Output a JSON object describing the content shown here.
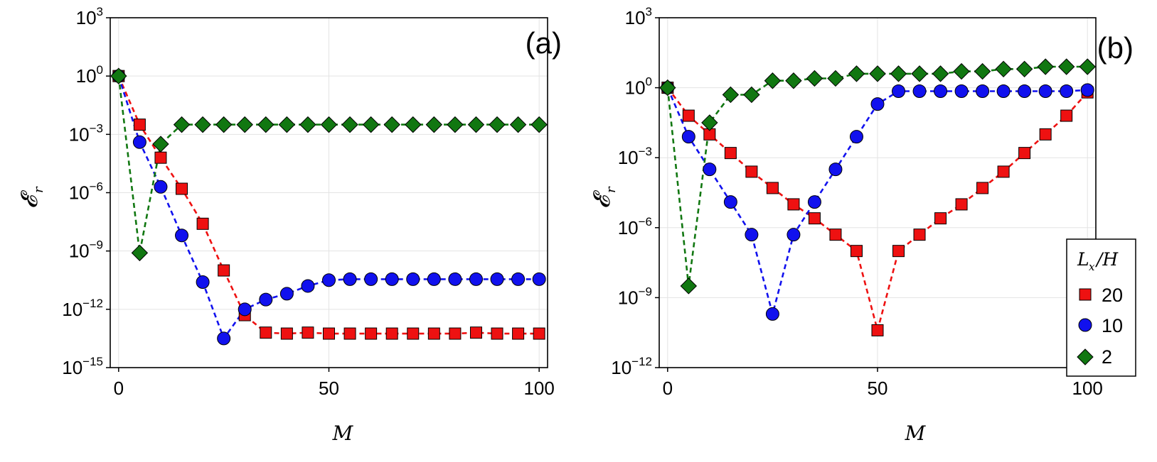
{
  "chart_data": [
    {
      "type": "line",
      "panel_label": "(a)",
      "xlabel": "M",
      "ylabel": "𝓔",
      "ylabel_subscript": "r",
      "yscale": "log",
      "xlim": [
        -2,
        102
      ],
      "ylim_exponents": [
        -15,
        3
      ],
      "xticks": [
        0,
        50,
        100
      ],
      "yticks_exponents": [
        -15,
        -12,
        -9,
        -6,
        -3,
        0,
        3
      ],
      "grid": true,
      "x": [
        0,
        5,
        10,
        15,
        20,
        25,
        30,
        35,
        40,
        45,
        50,
        55,
        60,
        65,
        70,
        75,
        80,
        85,
        90,
        95,
        100
      ],
      "series": [
        {
          "name": "20",
          "marker": "square",
          "color": "#ee1111",
          "log10_values": [
            0,
            -2.5,
            -4.2,
            -5.8,
            -7.6,
            -10.0,
            -12.3,
            -13.2,
            -13.25,
            -13.2,
            -13.25,
            -13.25,
            -13.25,
            -13.25,
            -13.25,
            -13.25,
            -13.25,
            -13.2,
            -13.25,
            -13.25,
            -13.25
          ]
        },
        {
          "name": "10",
          "marker": "circle",
          "color": "#1111ee",
          "log10_values": [
            0,
            -3.4,
            -5.7,
            -8.2,
            -10.6,
            -13.5,
            -12.0,
            -11.5,
            -11.2,
            -10.8,
            -10.5,
            -10.45,
            -10.45,
            -10.45,
            -10.45,
            -10.45,
            -10.45,
            -10.45,
            -10.45,
            -10.45,
            -10.45
          ]
        },
        {
          "name": "2",
          "marker": "diamond",
          "color": "#117711",
          "log10_values": [
            0,
            -9.1,
            -3.5,
            -2.5,
            -2.5,
            -2.5,
            -2.5,
            -2.5,
            -2.5,
            -2.5,
            -2.5,
            -2.5,
            -2.5,
            -2.5,
            -2.5,
            -2.5,
            -2.5,
            -2.5,
            -2.5,
            -2.5,
            -2.5
          ]
        }
      ]
    },
    {
      "type": "line",
      "panel_label": "(b)",
      "xlabel": "M",
      "ylabel": "𝓔",
      "ylabel_subscript": "r",
      "yscale": "log",
      "xlim": [
        -2,
        102
      ],
      "ylim_exponents": [
        -12,
        3
      ],
      "xticks": [
        0,
        50,
        100
      ],
      "yticks_exponents": [
        -12,
        -9,
        -6,
        -3,
        0,
        3
      ],
      "grid": true,
      "legend": {
        "title": "L",
        "title_subscript": "x",
        "title_suffix": "/H",
        "position": "lower-right",
        "entries": [
          "20",
          "10",
          "2"
        ]
      },
      "x": [
        0,
        5,
        10,
        15,
        20,
        25,
        30,
        35,
        40,
        45,
        50,
        55,
        60,
        65,
        70,
        75,
        80,
        85,
        90,
        95,
        100
      ],
      "series": [
        {
          "name": "20",
          "marker": "square",
          "color": "#ee1111",
          "log10_values": [
            0,
            -1.2,
            -2.0,
            -2.8,
            -3.6,
            -4.3,
            -5.0,
            -5.6,
            -6.3,
            -7.0,
            -10.4,
            -7.0,
            -6.3,
            -5.6,
            -5.0,
            -4.3,
            -3.6,
            -2.8,
            -2.0,
            -1.2,
            -0.2
          ]
        },
        {
          "name": "10",
          "marker": "circle",
          "color": "#1111ee",
          "log10_values": [
            0,
            -2.1,
            -3.5,
            -4.9,
            -6.3,
            -9.7,
            -6.3,
            -4.9,
            -3.5,
            -2.1,
            -0.7,
            -0.15,
            -0.15,
            -0.15,
            -0.15,
            -0.15,
            -0.15,
            -0.15,
            -0.15,
            -0.15,
            -0.1
          ]
        },
        {
          "name": "2",
          "marker": "diamond",
          "color": "#117711",
          "log10_values": [
            0,
            -8.5,
            -1.5,
            -0.3,
            -0.3,
            0.3,
            0.3,
            0.4,
            0.4,
            0.6,
            0.6,
            0.6,
            0.6,
            0.6,
            0.7,
            0.7,
            0.8,
            0.8,
            0.9,
            0.9,
            0.9
          ]
        }
      ]
    }
  ]
}
